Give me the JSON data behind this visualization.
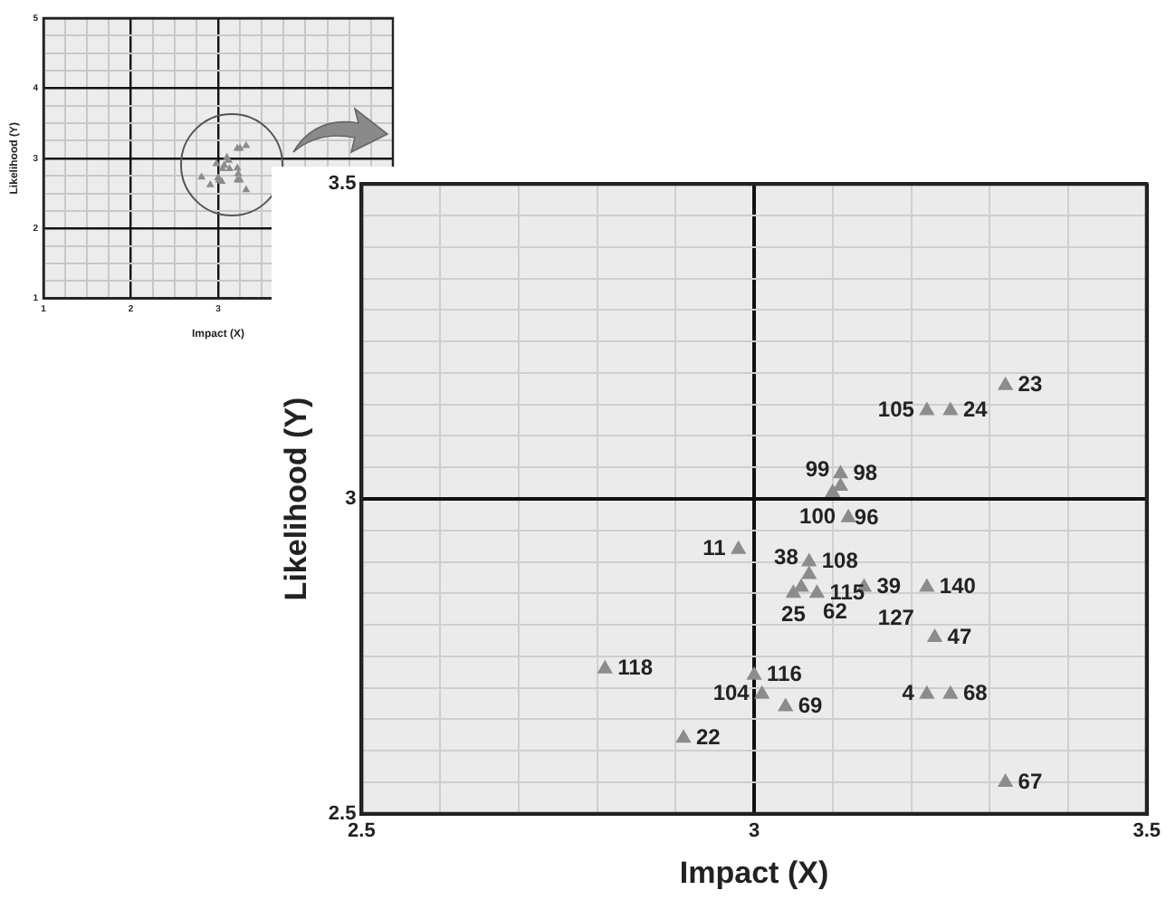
{
  "chart_data": [
    {
      "type": "scatter",
      "xlabel": "Impact (X)",
      "ylabel": "Likelihood (Y)",
      "xlim": [
        1,
        5
      ],
      "ylim": [
        1,
        5
      ],
      "xticks": [
        1,
        {
          "value": 1.25,
          "label": null
        },
        {
          "value": 1.5,
          "label": null
        },
        {
          "value": 1.75,
          "label": null
        },
        2,
        {
          "value": 2.25,
          "label": null
        },
        {
          "value": 2.5,
          "label": null
        },
        {
          "value": 2.75,
          "label": null
        },
        3,
        {
          "value": 3.25,
          "label": null
        },
        {
          "value": 3.5,
          "label": null
        },
        {
          "value": 3.75,
          "label": null
        },
        {
          "value": 4,
          "label": null
        },
        {
          "value": 4.25,
          "label": null
        },
        {
          "value": 4.5,
          "label": null
        },
        {
          "value": 4.75,
          "label": null
        },
        {
          "value": 5,
          "label": null
        }
      ],
      "yticks": [
        1,
        {
          "value": 1.25,
          "label": null
        },
        {
          "value": 1.5,
          "label": null
        },
        {
          "value": 1.75,
          "label": null
        },
        2,
        {
          "value": 2.25,
          "label": null
        },
        {
          "value": 2.5,
          "label": null
        },
        {
          "value": 2.75,
          "label": null
        },
        3,
        {
          "value": 3.25,
          "label": null
        },
        {
          "value": 3.5,
          "label": null
        },
        {
          "value": 3.75,
          "label": null
        },
        4,
        {
          "value": 4.25,
          "label": null
        },
        {
          "value": 4.5,
          "label": null
        },
        {
          "value": 4.75,
          "label": null
        },
        5
      ],
      "grid": true,
      "legend": false,
      "marker": "triangle",
      "series": [
        {
          "color": "#8c8c8c",
          "x": [
            3.32,
            3.22,
            3.25,
            null,
            null,
            3.1,
            3.12,
            2.98,
            3.07,
            null,
            null,
            3.05,
            null,
            null,
            3.13,
            3.22,
            3.23,
            2.81,
            3.0,
            3.01,
            3.04,
            2.91,
            3.22,
            3.25,
            3.32
          ],
          "values": [
            3.18,
            3.14,
            3.14,
            null,
            null,
            3.01,
            2.97,
            2.92,
            2.9,
            null,
            null,
            2.85,
            null,
            null,
            2.85,
            2.86,
            2.78,
            2.73,
            2.72,
            2.69,
            2.67,
            2.62,
            2.69,
            2.69,
            2.55
          ]
        }
      ]
    },
    {
      "type": "scatter",
      "xlabel": "Impact (X)",
      "ylabel": "Likelihood (Y)",
      "xlim": [
        2.5,
        3.5
      ],
      "ylim": [
        2.5,
        3.5
      ],
      "xticks": [
        2.5,
        {
          "value": 2.6,
          "label": null
        },
        {
          "value": 2.7,
          "label": null
        },
        {
          "value": 2.8,
          "label": null
        },
        {
          "value": 2.9,
          "label": null
        },
        3,
        {
          "value": 3.1,
          "label": null
        },
        {
          "value": 3.2,
          "label": null
        },
        {
          "value": 3.3,
          "label": null
        },
        {
          "value": 3.4,
          "label": null
        },
        3.5
      ],
      "yticks": [
        2.5,
        {
          "value": 2.55,
          "label": null
        },
        {
          "value": 2.6,
          "label": null
        },
        {
          "value": 2.65,
          "label": null
        },
        {
          "value": 2.7,
          "label": null
        },
        {
          "value": 2.75,
          "label": null
        },
        {
          "value": 2.8,
          "label": null
        },
        {
          "value": 2.85,
          "label": null
        },
        {
          "value": 2.9,
          "label": null
        },
        {
          "value": 2.95,
          "label": null
        },
        3,
        {
          "value": 3.05,
          "label": null
        },
        {
          "value": 3.1,
          "label": null
        },
        {
          "value": 3.15,
          "label": null
        },
        {
          "value": 3.2,
          "label": null
        },
        {
          "value": 3.25,
          "label": null
        },
        {
          "value": 3.3,
          "label": null
        },
        {
          "value": 3.35,
          "label": null
        },
        {
          "value": 3.4,
          "label": null
        },
        {
          "value": 3.45,
          "label": null
        },
        3.5
      ],
      "grid": true,
      "legend": false,
      "marker": "triangle",
      "series": [
        {
          "color": "#8c8c8c",
          "x": [
            3.32,
            3.22,
            3.25,
            3.11,
            3.11,
            3.1,
            3.12,
            2.98,
            3.07,
            3.07,
            3.06,
            3.05,
            3.08,
            3.14,
            null,
            3.22,
            3.23,
            2.81,
            3.0,
            3.01,
            3.04,
            2.91,
            3.22,
            3.25,
            3.32
          ],
          "values": [
            3.18,
            3.14,
            3.14,
            3.04,
            3.02,
            3.01,
            2.97,
            2.92,
            2.9,
            2.88,
            2.86,
            2.85,
            2.85,
            2.86,
            null,
            2.86,
            2.78,
            2.73,
            2.72,
            2.69,
            2.67,
            2.62,
            2.69,
            2.69,
            2.55
          ]
        }
      ],
      "annotations": [
        {
          "text": "23",
          "x": 3.32,
          "y": 3.18
        },
        {
          "text": "105",
          "x": 3.22,
          "y": 3.14
        },
        {
          "text": "24",
          "x": 3.25,
          "y": 3.14
        },
        {
          "text": "98",
          "x": 3.11,
          "y": 3.04
        },
        {
          "text": "99",
          "x": 3.11,
          "y": 3.02
        },
        {
          "text": "96",
          "x": 3.1,
          "y": 3.01
        },
        {
          "text": "100",
          "x": 3.12,
          "y": 2.97
        },
        {
          "text": "11",
          "x": 2.98,
          "y": 2.92
        },
        {
          "text": "108",
          "x": 3.07,
          "y": 2.9
        },
        {
          "text": "38",
          "x": 3.07,
          "y": 2.88
        },
        {
          "text": "62",
          "x": 3.06,
          "y": 2.86
        },
        {
          "text": "25",
          "x": 3.05,
          "y": 2.85
        },
        {
          "text": "115",
          "x": 3.08,
          "y": 2.85
        },
        {
          "text": "39",
          "x": 3.14,
          "y": 2.86
        },
        {
          "text": "127",
          "x": 3.13,
          "y": 2.85
        },
        {
          "text": "140",
          "x": 3.22,
          "y": 2.86
        },
        {
          "text": "47",
          "x": 3.23,
          "y": 2.78
        },
        {
          "text": "118",
          "x": 2.81,
          "y": 2.73
        },
        {
          "text": "116",
          "x": 3.0,
          "y": 2.72
        },
        {
          "text": "104",
          "x": 3.01,
          "y": 2.69
        },
        {
          "text": "69",
          "x": 3.04,
          "y": 2.67
        },
        {
          "text": "22",
          "x": 2.91,
          "y": 2.62
        },
        {
          "text": "4",
          "x": 3.22,
          "y": 2.69
        },
        {
          "text": "68",
          "x": 3.25,
          "y": 2.69
        },
        {
          "text": "67",
          "x": 3.32,
          "y": 2.55
        }
      ]
    }
  ]
}
